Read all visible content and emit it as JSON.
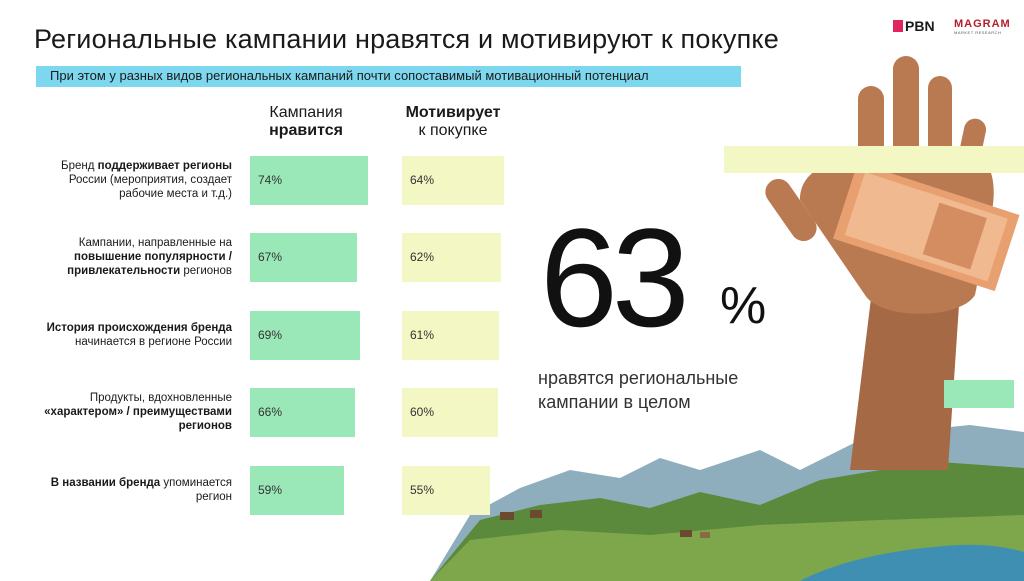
{
  "header": {
    "title": "Региональные кампании нравятся и мотивируют к покупке",
    "subtitle": "При этом у разных видов региональных кампаний почти сопоставимый мотивационный потенциал",
    "logo_pbn": "PBN",
    "logo_magram": "MAGRAM",
    "logo_magram_sub": "MARKET RESEARCH"
  },
  "columns": {
    "likes_line1": "Кампания",
    "likes_line2": "нравится",
    "motivates_line1": "Мотивирует",
    "motivates_line2": "к покупке"
  },
  "rows": [
    {
      "parts": [
        "Бренд ",
        "поддерживает регионы",
        " России (мероприятия, создает рабочие места и т.д.)"
      ]
    },
    {
      "parts": [
        "Кампании, направленные на ",
        "повышение популярности / привлекательности",
        " регионов"
      ]
    },
    {
      "parts": [
        "",
        "История происхождения бренда",
        " начинается в регионе России"
      ]
    },
    {
      "parts": [
        "Продукты, вдохновленные ",
        "«характером» / преимуществами регионов",
        ""
      ]
    },
    {
      "parts": [
        "",
        "В названии бренда",
        " упоминается регион"
      ]
    }
  ],
  "highlight": {
    "number": "63",
    "percent": "%",
    "caption": "нравятся региональные кампании в целом"
  },
  "chart_data": {
    "type": "bar",
    "categories": [
      "Бренд поддерживает регионы России (мероприятия, создает рабочие места и т.д.)",
      "Кампании, направленные на повышение популярности / привлекательности регионов",
      "История происхождения бренда начинается в регионе России",
      "Продукты, вдохновленные «характером» / преимуществами регионов",
      "В названии бренда упоминается регион"
    ],
    "series": [
      {
        "name": "Кампания нравится",
        "values": [
          74,
          67,
          69,
          66,
          59
        ],
        "labels": [
          "74%",
          "67%",
          "69%",
          "66%",
          "59%"
        ],
        "color": "#9ae8b8"
      },
      {
        "name": "Мотивирует к покупке",
        "values": [
          64,
          62,
          61,
          60,
          55
        ],
        "labels": [
          "64%",
          "62%",
          "61%",
          "60%",
          "55%"
        ],
        "color": "#f3f7c4"
      }
    ],
    "ylim": [
      0,
      100
    ]
  }
}
